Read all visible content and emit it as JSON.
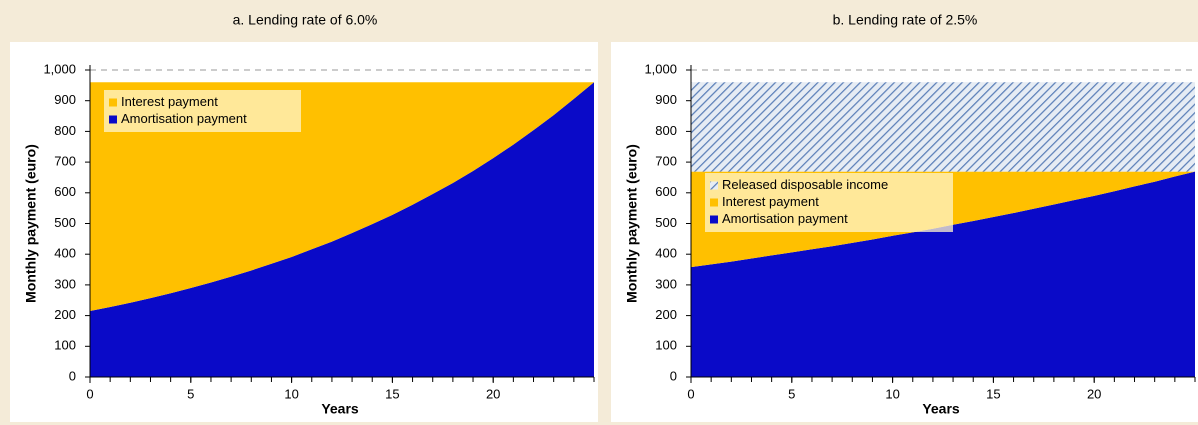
{
  "chart_data": [
    {
      "type": "area",
      "stacked": true,
      "title": "a. Lending rate of 6.0%",
      "x_label": "Years",
      "y_label": "Monthly payment (euro)",
      "x": [
        0,
        1,
        2,
        3,
        4,
        5,
        6,
        7,
        8,
        9,
        10,
        11,
        12,
        13,
        14,
        15,
        16,
        17,
        18,
        19,
        20,
        21,
        22,
        23,
        24,
        25
      ],
      "xlim": [
        0,
        25
      ],
      "xticks": [
        0,
        5,
        10,
        15,
        20
      ],
      "ylim": [
        0,
        1000
      ],
      "yticks": [
        0,
        100,
        200,
        300,
        400,
        500,
        600,
        700,
        800,
        900,
        {
          "value": 1000,
          "label": "1,000"
        }
      ],
      "legend": "upper left",
      "series": [
        {
          "name": "Amortisation payment",
          "color": "#0a0ac8",
          "values": [
            215,
            228,
            242,
            257,
            273,
            290,
            308,
            327,
            347,
            369,
            391,
            416,
            441,
            469,
            498,
            528,
            561,
            596,
            632,
            671,
            713,
            757,
            804,
            853,
            906,
            960
          ]
        },
        {
          "name": "Interest payment",
          "color": "#ffc000",
          "values": [
            745,
            732,
            718,
            703,
            687,
            670,
            652,
            633,
            613,
            591,
            569,
            544,
            519,
            491,
            462,
            432,
            399,
            364,
            328,
            289,
            247,
            203,
            156,
            107,
            54,
            0
          ]
        }
      ]
    },
    {
      "type": "area",
      "stacked": true,
      "title": "b. Lending rate of 2.5%",
      "x_label": "Years",
      "y_label": "Monthly payment (euro)",
      "x": [
        0,
        1,
        2,
        3,
        4,
        5,
        6,
        7,
        8,
        9,
        10,
        11,
        12,
        13,
        14,
        15,
        16,
        17,
        18,
        19,
        20,
        21,
        22,
        23,
        24,
        25
      ],
      "xlim": [
        0,
        25
      ],
      "xticks": [
        0,
        5,
        10,
        15,
        20
      ],
      "ylim": [
        0,
        1000
      ],
      "yticks": [
        0,
        100,
        200,
        300,
        400,
        500,
        600,
        700,
        800,
        900,
        {
          "value": 1000,
          "label": "1,000"
        }
      ],
      "legend": "center left",
      "series": [
        {
          "name": "Amortisation payment",
          "color": "#0a0ac8",
          "values": [
            358,
            367,
            376,
            386,
            396,
            406,
            416,
            426,
            437,
            448,
            460,
            471,
            483,
            496,
            508,
            521,
            534,
            548,
            562,
            576,
            590,
            605,
            621,
            636,
            653,
            669
          ]
        },
        {
          "name": "Interest payment",
          "color": "#ffc000",
          "values": [
            311,
            302,
            293,
            283,
            273,
            263,
            253,
            243,
            232,
            221,
            209,
            198,
            186,
            173,
            161,
            148,
            135,
            121,
            107,
            93,
            79,
            64,
            48,
            33,
            16,
            0
          ]
        },
        {
          "name": "Released disposable income",
          "color": "#5b7fb8",
          "pattern": "hatch",
          "values": [
            291,
            291,
            291,
            291,
            291,
            291,
            291,
            291,
            291,
            291,
            291,
            291,
            291,
            291,
            291,
            291,
            291,
            291,
            291,
            291,
            291,
            291,
            291,
            291,
            291,
            291
          ]
        }
      ]
    }
  ]
}
